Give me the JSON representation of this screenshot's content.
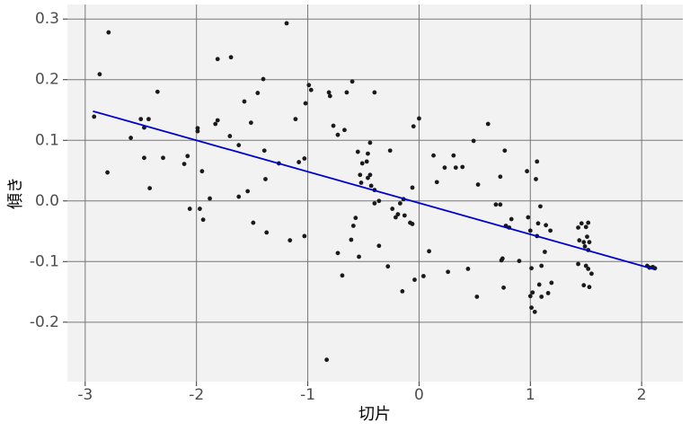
{
  "chart_data": {
    "type": "scatter",
    "x_label": "切片",
    "y_label": "傾き",
    "xlim": [
      -3.16,
      2.37
    ],
    "ylim": [
      -0.298,
      0.324
    ],
    "xticks": [
      -3,
      -2,
      -1,
      0,
      1,
      2
    ],
    "yticks": [
      0.3,
      0.2,
      0.1,
      {
        "value": 0.0,
        "label": "0.0"
      },
      -0.1,
      -0.2
    ],
    "grid": true,
    "background": "#f2f2f2",
    "grid_color": "#777777",
    "color": "#1a1a1a",
    "x": [
      -2.92,
      -2.87,
      -2.79,
      -2.8,
      -2.59,
      -2.5,
      -2.47,
      -2.43,
      -2.47,
      -2.42,
      -2.35,
      -2.3,
      -2.11,
      -2.08,
      -2.06,
      -1.99,
      -1.99,
      -1.97,
      -1.95,
      -1.94,
      -1.88,
      -1.83,
      -1.81,
      -1.81,
      -1.69,
      -1.7,
      -1.62,
      -1.62,
      -1.57,
      -1.54,
      -1.51,
      -1.49,
      -1.45,
      -1.4,
      -1.39,
      -1.38,
      -1.37,
      -1.26,
      -1.19,
      -1.16,
      -1.11,
      -1.08,
      -1.03,
      -1.02,
      -1.03,
      -0.99,
      -0.97,
      -0.83,
      -0.81,
      -0.8,
      -0.77,
      -0.73,
      -0.73,
      -0.69,
      -0.67,
      -0.65,
      -0.61,
      -0.6,
      -0.59,
      -0.57,
      -0.55,
      -0.54,
      -0.53,
      -0.52,
      -0.51,
      -0.47,
      -0.46,
      -0.46,
      -0.44,
      -0.44,
      -0.43,
      -0.4,
      -0.4,
      -0.4,
      -0.36,
      -0.36,
      -0.28,
      -0.26,
      -0.24,
      -0.21,
      -0.19,
      -0.17,
      -0.15,
      -0.14,
      -0.13,
      -0.08,
      -0.06,
      -0.06,
      -0.05,
      -0.04,
      0.0,
      0.04,
      0.09,
      0.13,
      0.16,
      0.23,
      0.26,
      0.31,
      0.33,
      0.39,
      0.44,
      0.49,
      0.52,
      0.53,
      0.62,
      0.69,
      0.73,
      0.73,
      0.74,
      0.75,
      0.76,
      0.77,
      0.78,
      0.81,
      0.83,
      0.9,
      0.97,
      0.98,
      1.0,
      1.0,
      1.01,
      1.01,
      1.02,
      1.04,
      1.05,
      1.06,
      1.06,
      1.07,
      1.08,
      1.09,
      1.1,
      1.1,
      1.13,
      1.14,
      1.16,
      1.18,
      1.19,
      1.43,
      1.43,
      1.44,
      1.46,
      1.48,
      1.48,
      1.49,
      1.5,
      1.5,
      1.51,
      1.52,
      1.52,
      1.53,
      1.53,
      1.52,
      1.55,
      2.05,
      2.07,
      2.1,
      2.12
    ],
    "values": [
      0.139,
      0.209,
      0.278,
      0.047,
      0.104,
      0.135,
      0.121,
      0.135,
      0.071,
      0.021,
      0.18,
      0.071,
      0.061,
      0.074,
      -0.013,
      0.12,
      0.115,
      -0.013,
      0.049,
      -0.031,
      0.004,
      0.127,
      0.234,
      0.133,
      0.237,
      0.107,
      0.092,
      0.007,
      0.164,
      0.016,
      0.129,
      -0.036,
      0.178,
      0.201,
      0.083,
      0.036,
      -0.052,
      0.062,
      0.293,
      -0.065,
      0.135,
      0.064,
      0.07,
      0.161,
      -0.058,
      0.191,
      0.183,
      -0.262,
      0.179,
      0.173,
      0.124,
      0.109,
      -0.086,
      -0.123,
      0.117,
      0.179,
      -0.064,
      0.197,
      -0.041,
      -0.028,
      0.081,
      -0.092,
      0.043,
      0.03,
      0.062,
      0.065,
      0.038,
      0.078,
      0.043,
      0.096,
      0.025,
      0.179,
      -0.004,
      0.018,
      0.0,
      -0.074,
      -0.108,
      0.083,
      -0.013,
      -0.027,
      -0.022,
      -0.004,
      -0.149,
      0.003,
      -0.024,
      -0.036,
      0.022,
      -0.038,
      0.123,
      -0.13,
      0.136,
      -0.124,
      -0.083,
      0.075,
      0.031,
      0.055,
      -0.117,
      0.075,
      0.055,
      0.056,
      -0.112,
      0.099,
      -0.158,
      0.027,
      0.127,
      -0.006,
      -0.006,
      0.04,
      -0.098,
      -0.095,
      -0.143,
      0.083,
      -0.041,
      -0.044,
      -0.03,
      -0.099,
      0.049,
      -0.027,
      -0.049,
      -0.157,
      -0.111,
      -0.176,
      -0.151,
      -0.183,
      0.036,
      -0.058,
      0.065,
      -0.037,
      -0.138,
      -0.009,
      -0.107,
      -0.158,
      -0.084,
      -0.04,
      -0.152,
      -0.049,
      -0.135,
      -0.104,
      -0.044,
      -0.065,
      -0.037,
      -0.139,
      -0.068,
      -0.075,
      -0.107,
      -0.043,
      -0.059,
      -0.112,
      -0.081,
      -0.142,
      -0.068,
      -0.036,
      -0.12,
      -0.107,
      -0.11,
      -0.109,
      -0.111
    ],
    "fit": {
      "color": "#0000cc",
      "x": [
        -2.93,
        2.12
      ],
      "values": [
        0.148,
        -0.113
      ]
    }
  }
}
